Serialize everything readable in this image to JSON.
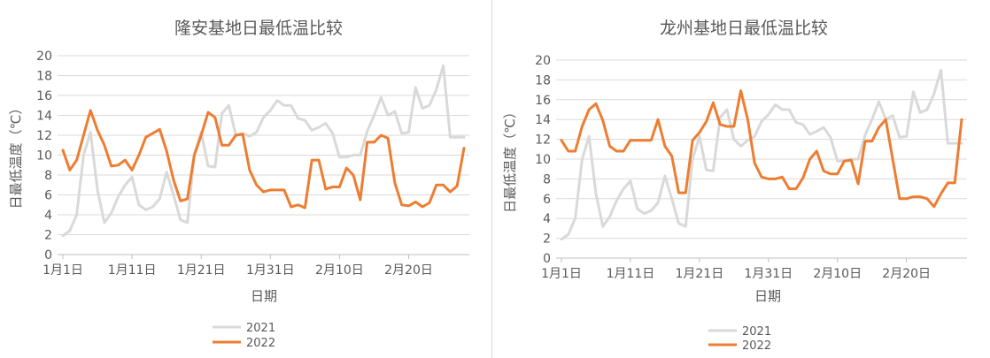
{
  "chart_data": [
    {
      "type": "line",
      "title": "隆安基地日最低温比较",
      "xlabel": "日期",
      "ylabel": "日最低温度（℃）",
      "ylim": [
        0,
        20
      ],
      "yticks": [
        0,
        2,
        4,
        6,
        8,
        10,
        12,
        14,
        16,
        18,
        20
      ],
      "x_tick_labels": [
        "1月1日",
        "1月11日",
        "1月21日",
        "1月31日",
        "2月10日",
        "2月20日"
      ],
      "x_tick_days": [
        1,
        11,
        21,
        31,
        41,
        51
      ],
      "legend_position": "bottom",
      "grid": true,
      "series": [
        {
          "name": "2021",
          "color": "#d9d9d9",
          "values": [
            1.9,
            2.4,
            4.0,
            10.0,
            12.3,
            6.5,
            3.2,
            4.2,
            5.8,
            7.0,
            7.8,
            5.0,
            4.5,
            4.8,
            5.6,
            8.3,
            6.0,
            3.5,
            3.2,
            10.0,
            12.3,
            8.9,
            8.8,
            14.2,
            15.0,
            12.0,
            12.2,
            11.9,
            12.3,
            13.8,
            14.5,
            15.5,
            15.0,
            15.0,
            13.7,
            13.5,
            12.5,
            12.8,
            13.2,
            12.2,
            9.8,
            9.8,
            10.0,
            10.0,
            12.4,
            14.0,
            15.8,
            14.0,
            14.4,
            12.2,
            12.3,
            16.8,
            14.7,
            15.0,
            16.6,
            19.0,
            11.8,
            11.8,
            11.8
          ]
        },
        {
          "name": "2022",
          "color": "#ed7d31",
          "values": [
            10.5,
            8.5,
            9.5,
            12.0,
            14.5,
            12.5,
            11.0,
            8.9,
            9.0,
            9.5,
            8.5,
            10.0,
            11.8,
            12.2,
            12.6,
            10.4,
            7.5,
            5.4,
            5.6,
            10.0,
            12.0,
            14.3,
            13.8,
            11.0,
            11.0,
            12.0,
            12.1,
            8.5,
            7.0,
            6.3,
            6.5,
            6.5,
            6.5,
            4.8,
            5.0,
            4.7,
            9.5,
            9.5,
            6.6,
            6.8,
            6.8,
            8.7,
            8.0,
            5.5,
            11.3,
            11.3,
            12.0,
            11.7,
            7.2,
            5.0,
            4.9,
            5.3,
            4.8,
            5.2,
            7.0,
            7.0,
            6.3,
            6.9,
            10.7
          ]
        }
      ]
    },
    {
      "type": "line",
      "title": "龙州基地日最低温比较",
      "xlabel": "日期",
      "ylabel": "日最低温度（℃）",
      "ylim": [
        0,
        20
      ],
      "yticks": [
        0,
        2,
        4,
        6,
        8,
        10,
        12,
        14,
        16,
        18,
        20
      ],
      "x_tick_labels": [
        "1月1日",
        "1月11日",
        "1月21日",
        "1月31日",
        "2月10日",
        "2月20日"
      ],
      "x_tick_days": [
        1,
        11,
        21,
        31,
        41,
        51
      ],
      "legend_position": "bottom",
      "grid": true,
      "series": [
        {
          "name": "2021",
          "color": "#d9d9d9",
          "values": [
            1.9,
            2.4,
            4.0,
            10.0,
            12.3,
            6.5,
            3.2,
            4.2,
            5.8,
            7.0,
            7.8,
            5.0,
            4.5,
            4.8,
            5.6,
            8.3,
            6.0,
            3.5,
            3.2,
            10.0,
            12.3,
            8.9,
            8.8,
            14.2,
            15.0,
            12.0,
            11.3,
            11.9,
            12.3,
            13.8,
            14.5,
            15.5,
            15.0,
            15.0,
            13.7,
            13.5,
            12.5,
            12.8,
            13.2,
            12.2,
            9.8,
            9.8,
            10.0,
            10.0,
            12.4,
            14.0,
            15.8,
            14.0,
            14.4,
            12.2,
            12.3,
            16.8,
            14.7,
            15.0,
            16.6,
            19.0,
            11.6,
            11.6,
            11.6
          ]
        },
        {
          "name": "2022",
          "color": "#ed7d31",
          "values": [
            11.9,
            10.8,
            10.8,
            13.3,
            15.0,
            15.6,
            13.9,
            11.3,
            10.8,
            10.8,
            11.9,
            11.9,
            11.9,
            11.9,
            14.0,
            11.3,
            10.3,
            6.6,
            6.6,
            11.9,
            12.7,
            13.8,
            15.7,
            13.5,
            13.3,
            13.3,
            16.9,
            14.0,
            9.6,
            8.2,
            8.0,
            8.0,
            8.2,
            7.0,
            7.0,
            8.1,
            10.0,
            10.8,
            8.8,
            8.5,
            8.5,
            9.8,
            9.9,
            7.5,
            11.8,
            11.8,
            13.2,
            14.0,
            10.0,
            6.0,
            6.0,
            6.2,
            6.2,
            6.0,
            5.2,
            6.5,
            7.6,
            7.6,
            14.0
          ]
        }
      ]
    }
  ]
}
